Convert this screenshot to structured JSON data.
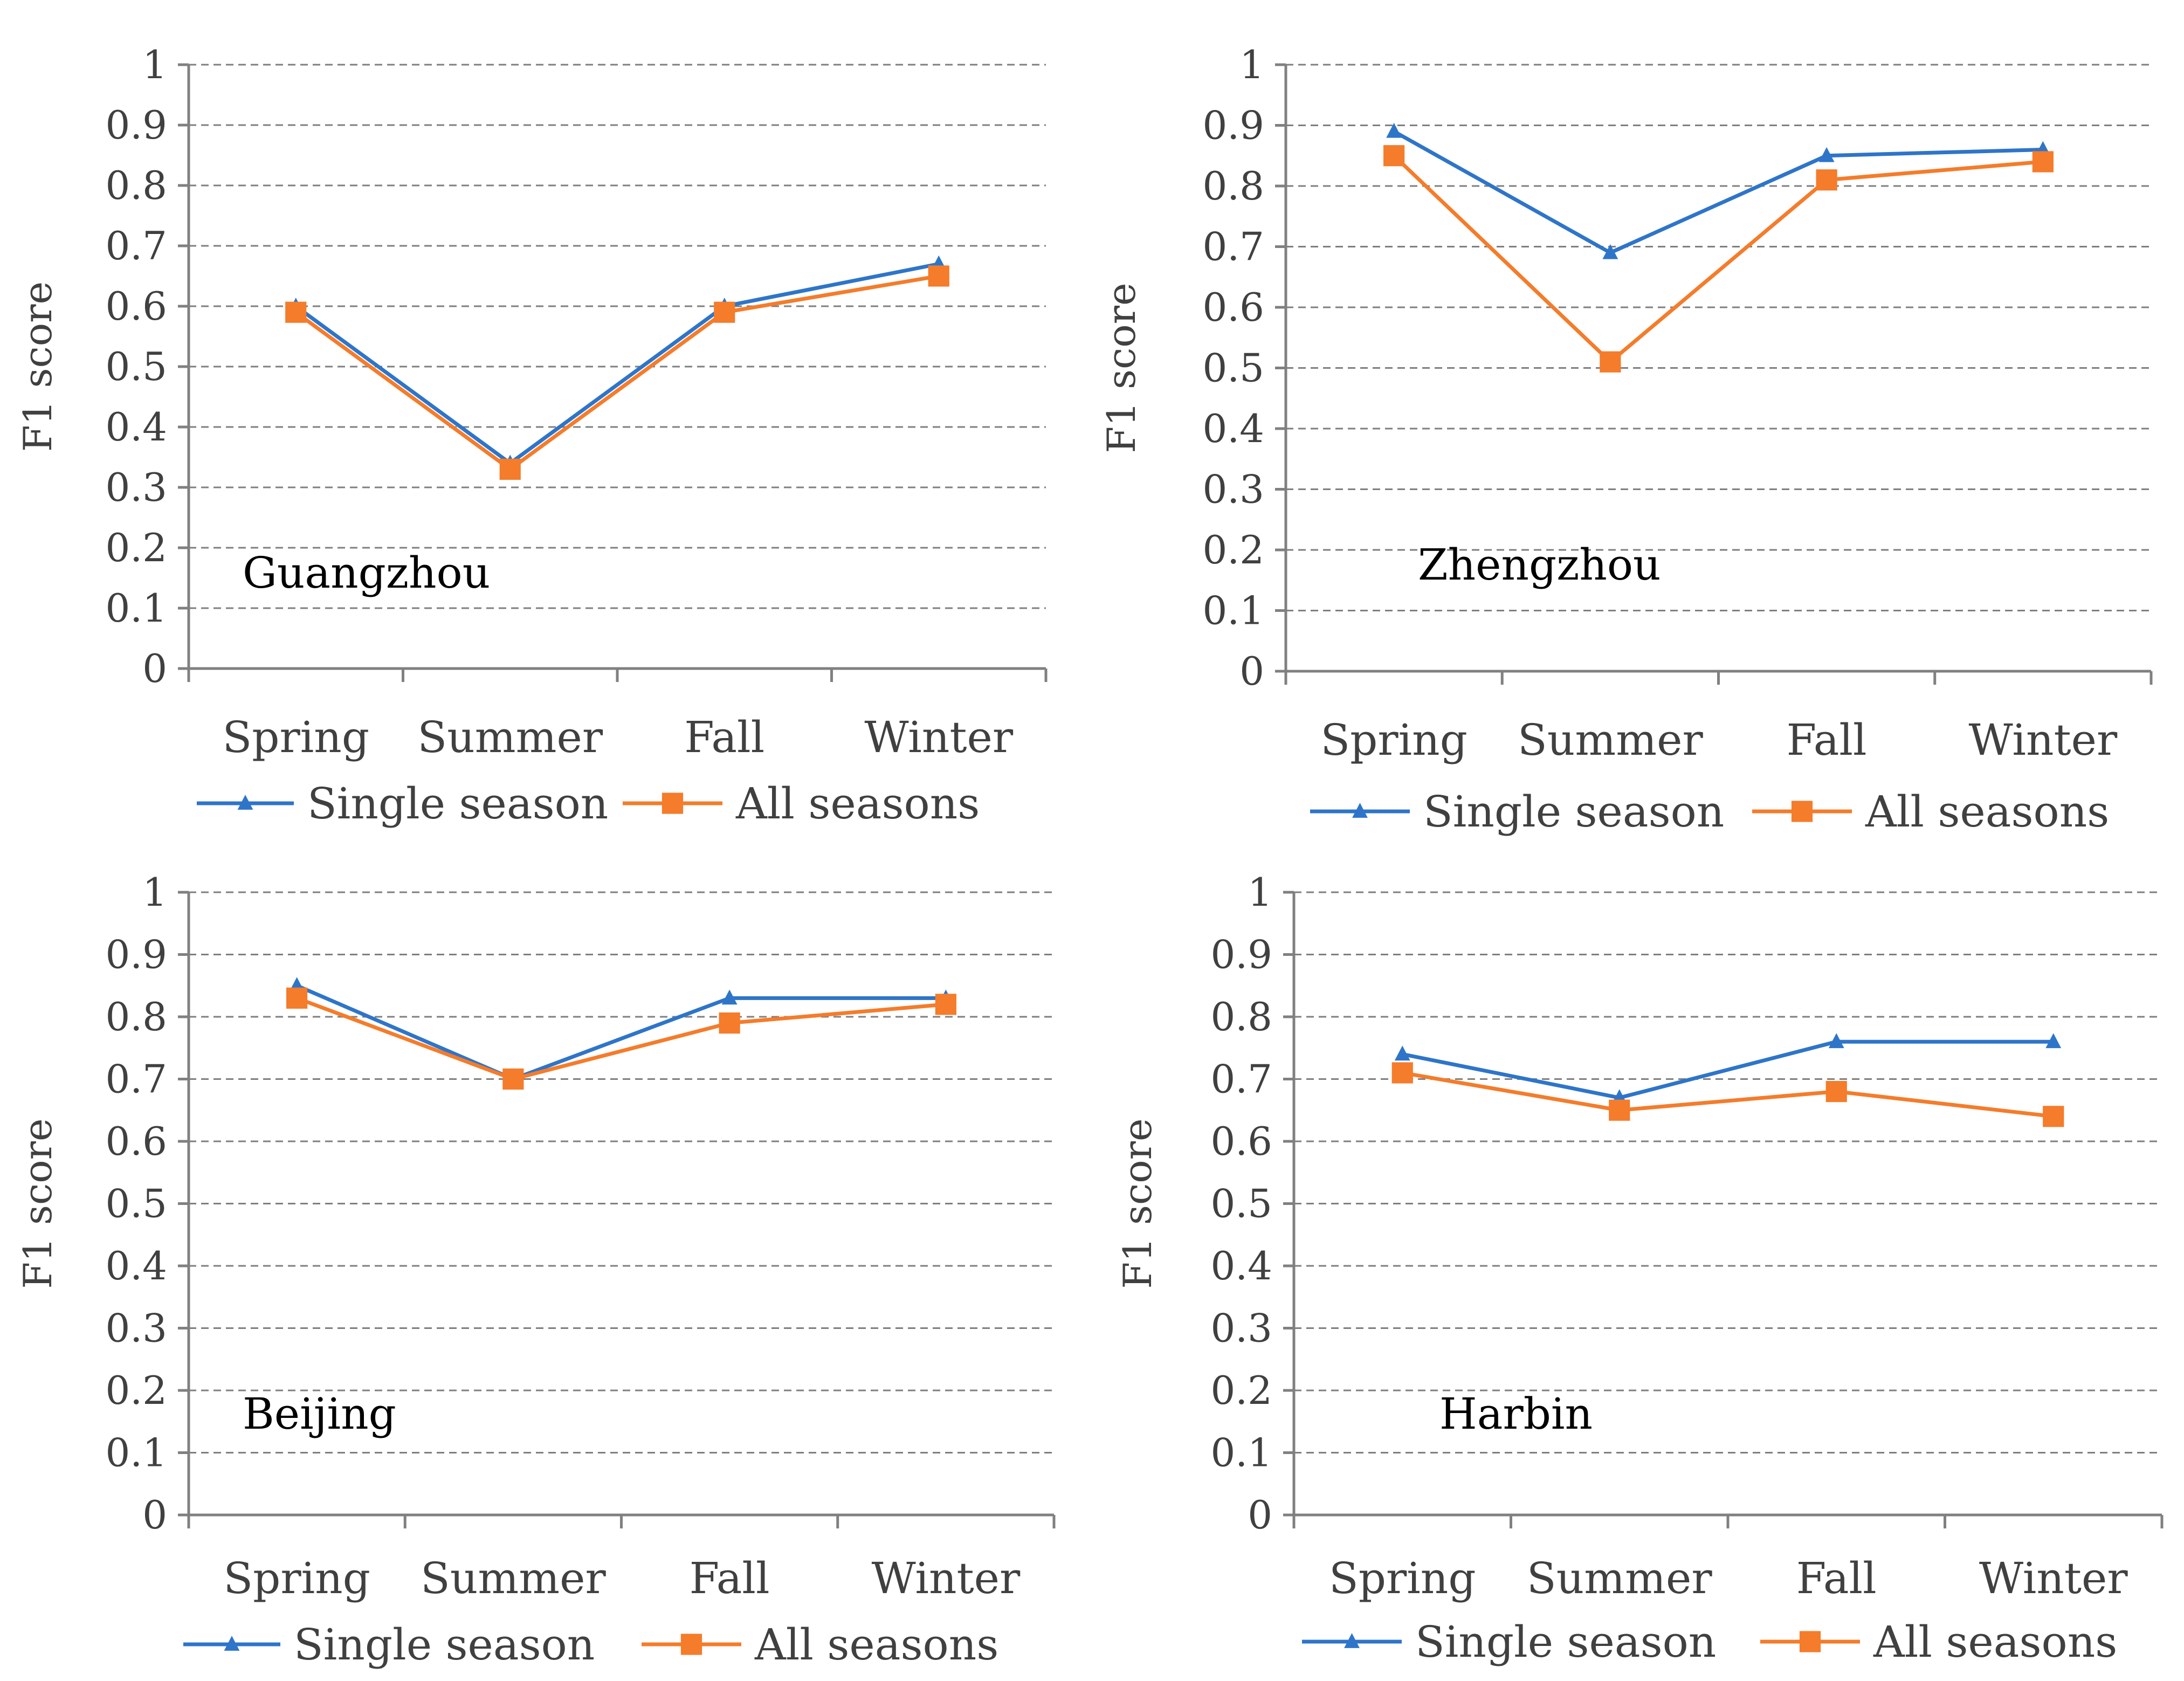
{
  "colors": {
    "single": "#2e75c9",
    "all": "#f47c2b"
  },
  "chart_data": [
    {
      "type": "line",
      "title": "Guangzhou",
      "ylabel": "F1 score",
      "categories": [
        "Spring",
        "Summer",
        "Fall",
        "Winter"
      ],
      "y_ticks": [
        "0",
        "0.1",
        "0.2",
        "0.3",
        "0.4",
        "0.5",
        "0.6",
        "0.7",
        "0.8",
        "0.9",
        "1"
      ],
      "ylim": [
        0,
        1
      ],
      "grid": true,
      "legend_position": "bottom",
      "series": [
        {
          "name": "Single season",
          "marker": "triangle",
          "values": [
            0.6,
            0.34,
            0.6,
            0.67
          ]
        },
        {
          "name": "All seasons",
          "marker": "square",
          "values": [
            0.59,
            0.33,
            0.59,
            0.65
          ]
        }
      ]
    },
    {
      "type": "line",
      "title": "Zhengzhou",
      "ylabel": "F1 score",
      "categories": [
        "Spring",
        "Summer",
        "Fall",
        "Winter"
      ],
      "y_ticks": [
        "0",
        "0.1",
        "0.2",
        "0.3",
        "0.4",
        "0.5",
        "0.6",
        "0.7",
        "0.8",
        "0.9",
        "1"
      ],
      "ylim": [
        0,
        1
      ],
      "grid": true,
      "legend_position": "bottom",
      "series": [
        {
          "name": "Single season",
          "marker": "triangle",
          "values": [
            0.89,
            0.69,
            0.85,
            0.86
          ]
        },
        {
          "name": "All seasons",
          "marker": "square",
          "values": [
            0.85,
            0.51,
            0.81,
            0.84
          ]
        }
      ]
    },
    {
      "type": "line",
      "title": "Beijing",
      "ylabel": "F1 score",
      "categories": [
        "Spring",
        "Summer",
        "Fall",
        "Winter"
      ],
      "y_ticks": [
        "0",
        "0.1",
        "0.2",
        "0.3",
        "0.4",
        "0.5",
        "0.6",
        "0.7",
        "0.8",
        "0.9",
        "1"
      ],
      "ylim": [
        0,
        1
      ],
      "grid": true,
      "legend_position": "bottom",
      "series": [
        {
          "name": "Single season",
          "marker": "triangle",
          "values": [
            0.85,
            0.7,
            0.83,
            0.83
          ]
        },
        {
          "name": "All seasons",
          "marker": "square",
          "values": [
            0.83,
            0.7,
            0.79,
            0.82
          ]
        }
      ]
    },
    {
      "type": "line",
      "title": "Harbin",
      "ylabel": "F1 score",
      "categories": [
        "Spring",
        "Summer",
        "Fall",
        "Winter"
      ],
      "y_ticks": [
        "0",
        "0.1",
        "0.2",
        "0.3",
        "0.4",
        "0.5",
        "0.6",
        "0.7",
        "0.8",
        "0.9",
        "1"
      ],
      "ylim": [
        0,
        1
      ],
      "grid": true,
      "legend_position": "bottom",
      "series": [
        {
          "name": "Single season",
          "marker": "triangle",
          "values": [
            0.74,
            0.67,
            0.76,
            0.76
          ]
        },
        {
          "name": "All seasons",
          "marker": "square",
          "values": [
            0.71,
            0.65,
            0.68,
            0.64
          ]
        }
      ]
    }
  ]
}
